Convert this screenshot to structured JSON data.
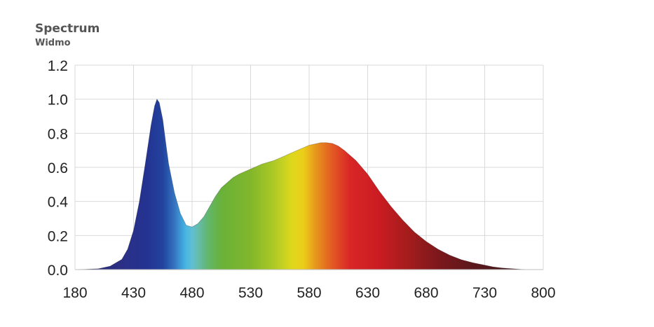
{
  "chart_data": {
    "type": "area",
    "title": "Spectrum",
    "subtitle": "Widmo",
    "xlabel": "",
    "ylabel": "",
    "x_ticks": [
      "180",
      "430",
      "480",
      "530",
      "580",
      "630",
      "680",
      "730",
      "800"
    ],
    "y_ticks": [
      "0.0",
      "0.2",
      "0.4",
      "0.6",
      "0.8",
      "1.0",
      "1.2"
    ],
    "ylim": [
      0,
      1.2
    ],
    "grid": true,
    "legend": "none",
    "fill": "wavelength-colored spectrum",
    "series": [
      {
        "x": [
          380,
          400,
          410,
          420,
          425,
          430,
          435,
          440,
          445,
          448,
          450,
          452,
          455,
          458,
          460,
          465,
          470,
          475,
          480,
          485,
          490,
          495,
          500,
          505,
          510,
          515,
          520,
          530,
          540,
          550,
          560,
          570,
          580,
          590,
          595,
          600,
          605,
          610,
          620,
          630,
          640,
          650,
          660,
          670,
          680,
          690,
          700,
          710,
          720,
          730,
          740,
          750,
          760,
          770,
          780
        ],
        "y": [
          0.0,
          0.005,
          0.02,
          0.06,
          0.12,
          0.23,
          0.4,
          0.62,
          0.85,
          0.96,
          1.0,
          0.98,
          0.88,
          0.72,
          0.62,
          0.45,
          0.33,
          0.26,
          0.25,
          0.27,
          0.31,
          0.37,
          0.43,
          0.48,
          0.51,
          0.54,
          0.56,
          0.59,
          0.62,
          0.64,
          0.67,
          0.7,
          0.73,
          0.745,
          0.745,
          0.74,
          0.725,
          0.7,
          0.64,
          0.56,
          0.46,
          0.37,
          0.29,
          0.22,
          0.165,
          0.12,
          0.085,
          0.058,
          0.04,
          0.026,
          0.016,
          0.01,
          0.006,
          0.003,
          0.0
        ]
      }
    ]
  }
}
